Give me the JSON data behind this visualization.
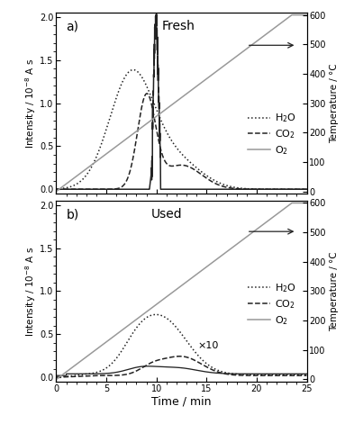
{
  "title_a": "Fresh",
  "title_b": "Used",
  "xlabel": "Time / min",
  "ylabel_left": "Intensity / 10$^{-8}$ A s",
  "ylabel_right": "Temperature / °C",
  "xlim": [
    0,
    25
  ],
  "ylim_intensity": [
    -0.05,
    2.05
  ],
  "ylim_temp": [
    -7.5,
    607.5
  ],
  "xticks": [
    0,
    5,
    10,
    15,
    20,
    25
  ],
  "yticks_intensity": [
    0.0,
    0.5,
    1.0,
    1.5,
    2.0
  ],
  "yticks_temp": [
    0,
    100,
    200,
    300,
    400,
    500,
    600
  ],
  "background_color": "#ffffff",
  "line_color_dark": "#222222",
  "line_color_gray": "#999999"
}
